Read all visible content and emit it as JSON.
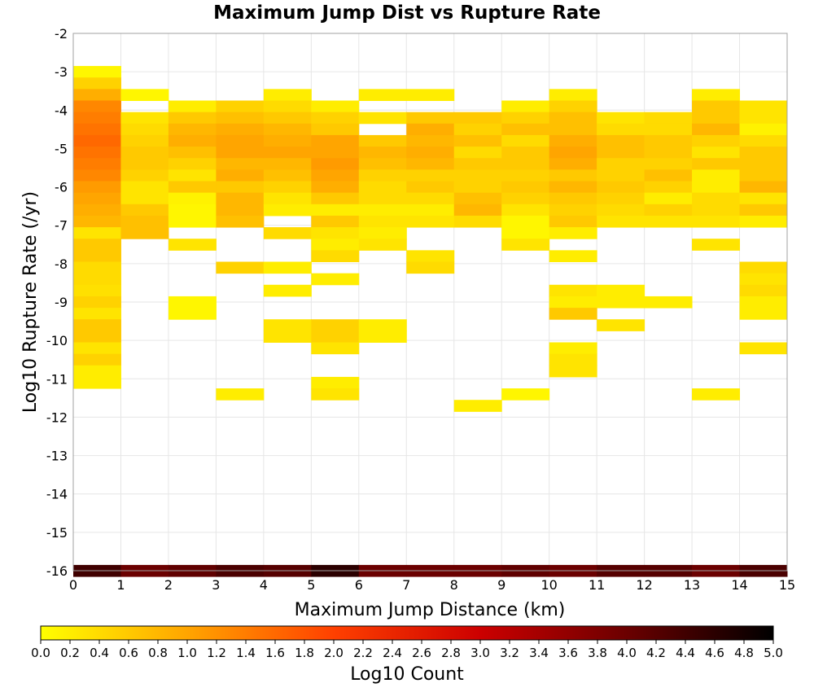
{
  "chart_data": {
    "type": "heatmap",
    "title": "Maximum Jump Dist vs Rupture Rate",
    "xlabel": "Maximum Jump Distance (km)",
    "ylabel": "Log10 Rupture Rate (/yr)",
    "xlim": [
      0,
      15
    ],
    "ylim": [
      -16,
      -2
    ],
    "x_ticks": [
      "0",
      "1",
      "2",
      "3",
      "4",
      "5",
      "6",
      "7",
      "8",
      "9",
      "10",
      "11",
      "12",
      "13",
      "14",
      "15"
    ],
    "y_ticks": [
      "-2",
      "-3",
      "-4",
      "-5",
      "-6",
      "-7",
      "-8",
      "-9",
      "-10",
      "-11",
      "-12",
      "-13",
      "-14",
      "-15",
      "-16"
    ],
    "bin_width_x": 1,
    "bin_height_y": 0.3,
    "colorbar": {
      "label": "Log10 Count",
      "range": [
        0,
        5
      ],
      "ticks": [
        "0.0",
        "0.2",
        "0.4",
        "0.6",
        "0.8",
        "1.0",
        "1.2",
        "1.4",
        "1.6",
        "1.8",
        "2.0",
        "2.2",
        "2.4",
        "2.6",
        "2.8",
        "3.0",
        "3.2",
        "3.4",
        "3.6",
        "3.8",
        "4.0",
        "4.2",
        "4.4",
        "4.6",
        "4.8",
        "5.0"
      ],
      "colors": [
        "#ffff00",
        "#ffa500",
        "#ff4000",
        "#cc0000",
        "#6b0000",
        "#000000"
      ]
    },
    "grid": true,
    "columns": [
      {
        "x": 0,
        "cells": [
          [
            -3.0,
            0.1
          ],
          [
            -3.3,
            0.5
          ],
          [
            -3.6,
            0.9
          ],
          [
            -3.9,
            1.3
          ],
          [
            -4.2,
            1.4
          ],
          [
            -4.5,
            1.5
          ],
          [
            -4.8,
            1.6
          ],
          [
            -5.1,
            1.5
          ],
          [
            -5.4,
            1.4
          ],
          [
            -5.7,
            1.3
          ],
          [
            -6.0,
            1.1
          ],
          [
            -6.3,
            1.0
          ],
          [
            -6.6,
            0.9
          ],
          [
            -6.9,
            0.8
          ],
          [
            -7.2,
            0.3
          ],
          [
            -7.5,
            0.6
          ],
          [
            -7.8,
            0.6
          ],
          [
            -8.1,
            0.4
          ],
          [
            -8.4,
            0.4
          ],
          [
            -8.7,
            0.35
          ],
          [
            -9.0,
            0.5
          ],
          [
            -9.3,
            0.3
          ],
          [
            -9.6,
            0.6
          ],
          [
            -9.9,
            0.6
          ],
          [
            -10.2,
            0.3
          ],
          [
            -10.5,
            0.5
          ],
          [
            -10.8,
            0.2
          ],
          [
            -11.1,
            0.2
          ],
          [
            -16.0,
            4.4
          ]
        ]
      },
      {
        "x": 1,
        "cells": [
          [
            -3.6,
            0.1
          ],
          [
            -4.2,
            0.3
          ],
          [
            -4.5,
            0.4
          ],
          [
            -4.8,
            0.5
          ],
          [
            -5.1,
            0.6
          ],
          [
            -5.4,
            0.6
          ],
          [
            -5.7,
            0.5
          ],
          [
            -6.0,
            0.3
          ],
          [
            -6.3,
            0.3
          ],
          [
            -6.6,
            0.6
          ],
          [
            -6.9,
            0.7
          ],
          [
            -7.2,
            0.7
          ],
          [
            -16.0,
            4.0
          ]
        ]
      },
      {
        "x": 2,
        "cells": [
          [
            -3.9,
            0.2
          ],
          [
            -4.2,
            0.6
          ],
          [
            -4.5,
            0.8
          ],
          [
            -4.8,
            0.9
          ],
          [
            -5.1,
            0.7
          ],
          [
            -5.4,
            0.5
          ],
          [
            -5.7,
            0.3
          ],
          [
            -6.0,
            0.6
          ],
          [
            -6.3,
            0.15
          ],
          [
            -6.6,
            0.1
          ],
          [
            -6.9,
            0.1
          ],
          [
            -7.5,
            0.3
          ],
          [
            -9.0,
            0.1
          ],
          [
            -9.3,
            0.1
          ],
          [
            -16.0,
            4.1
          ]
        ]
      },
      {
        "x": 3,
        "cells": [
          [
            -3.9,
            0.5
          ],
          [
            -4.2,
            0.7
          ],
          [
            -4.5,
            0.9
          ],
          [
            -4.8,
            1.0
          ],
          [
            -5.1,
            1.0
          ],
          [
            -5.4,
            0.8
          ],
          [
            -5.7,
            0.9
          ],
          [
            -6.0,
            0.6
          ],
          [
            -6.3,
            0.8
          ],
          [
            -6.6,
            0.8
          ],
          [
            -6.9,
            0.7
          ],
          [
            -8.1,
            0.5
          ],
          [
            -11.4,
            0.2
          ],
          [
            -16.0,
            4.3
          ]
        ]
      },
      {
        "x": 4,
        "cells": [
          [
            -3.6,
            0.2
          ],
          [
            -3.9,
            0.4
          ],
          [
            -4.2,
            0.6
          ],
          [
            -4.5,
            0.8
          ],
          [
            -4.8,
            0.9
          ],
          [
            -5.1,
            1.0
          ],
          [
            -5.4,
            0.8
          ],
          [
            -5.7,
            0.7
          ],
          [
            -6.0,
            0.5
          ],
          [
            -6.3,
            0.3
          ],
          [
            -6.6,
            0.2
          ],
          [
            -7.2,
            0.4
          ],
          [
            -8.1,
            0.2
          ],
          [
            -8.7,
            0.2
          ],
          [
            -9.6,
            0.3
          ],
          [
            -9.9,
            0.3
          ],
          [
            -16.0,
            4.2
          ]
        ]
      },
      {
        "x": 5,
        "cells": [
          [
            -3.9,
            0.2
          ],
          [
            -4.2,
            0.5
          ],
          [
            -4.5,
            0.6
          ],
          [
            -4.8,
            1.0
          ],
          [
            -5.1,
            1.0
          ],
          [
            -5.4,
            1.1
          ],
          [
            -5.7,
            1.0
          ],
          [
            -6.0,
            0.9
          ],
          [
            -6.3,
            0.6
          ],
          [
            -6.6,
            0.2
          ],
          [
            -6.9,
            0.6
          ],
          [
            -7.2,
            0.3
          ],
          [
            -7.5,
            0.2
          ],
          [
            -7.8,
            0.4
          ],
          [
            -8.4,
            0.2
          ],
          [
            -9.6,
            0.5
          ],
          [
            -9.9,
            0.5
          ],
          [
            -10.2,
            0.3
          ],
          [
            -11.1,
            0.2
          ],
          [
            -11.4,
            0.3
          ],
          [
            -16.0,
            4.6
          ]
        ]
      },
      {
        "x": 6,
        "cells": [
          [
            -3.6,
            0.2
          ],
          [
            -4.2,
            0.3
          ],
          [
            -4.8,
            0.6
          ],
          [
            -5.1,
            0.8
          ],
          [
            -5.4,
            0.7
          ],
          [
            -5.7,
            0.5
          ],
          [
            -6.0,
            0.4
          ],
          [
            -6.3,
            0.4
          ],
          [
            -6.6,
            0.2
          ],
          [
            -6.9,
            0.3
          ],
          [
            -7.2,
            0.2
          ],
          [
            -7.5,
            0.3
          ],
          [
            -9.6,
            0.2
          ],
          [
            -9.9,
            0.2
          ],
          [
            -16.0,
            4.0
          ]
        ]
      },
      {
        "x": 7,
        "cells": [
          [
            -3.6,
            0.2
          ],
          [
            -4.2,
            0.6
          ],
          [
            -4.5,
            0.9
          ],
          [
            -4.8,
            0.8
          ],
          [
            -5.1,
            0.9
          ],
          [
            -5.4,
            0.8
          ],
          [
            -5.7,
            0.5
          ],
          [
            -6.0,
            0.6
          ],
          [
            -6.3,
            0.4
          ],
          [
            -6.6,
            0.2
          ],
          [
            -6.9,
            0.3
          ],
          [
            -7.8,
            0.3
          ],
          [
            -8.1,
            0.4
          ],
          [
            -16.0,
            4.0
          ]
        ]
      },
      {
        "x": 8,
        "cells": [
          [
            -4.2,
            0.6
          ],
          [
            -4.5,
            0.5
          ],
          [
            -4.8,
            0.7
          ],
          [
            -5.1,
            0.4
          ],
          [
            -5.4,
            0.6
          ],
          [
            -5.7,
            0.5
          ],
          [
            -6.0,
            0.5
          ],
          [
            -6.3,
            0.7
          ],
          [
            -6.6,
            0.8
          ],
          [
            -6.9,
            0.4
          ],
          [
            -11.7,
            0.2
          ],
          [
            -16.0,
            4.0
          ]
        ]
      },
      {
        "x": 9,
        "cells": [
          [
            -3.9,
            0.2
          ],
          [
            -4.2,
            0.5
          ],
          [
            -4.5,
            0.7
          ],
          [
            -4.8,
            0.4
          ],
          [
            -5.1,
            0.6
          ],
          [
            -5.4,
            0.6
          ],
          [
            -5.7,
            0.5
          ],
          [
            -6.0,
            0.6
          ],
          [
            -6.3,
            0.5
          ],
          [
            -6.6,
            0.3
          ],
          [
            -6.9,
            0.1
          ],
          [
            -7.2,
            0.1
          ],
          [
            -7.5,
            0.3
          ],
          [
            -11.4,
            0.1
          ],
          [
            -16.0,
            4.1
          ]
        ]
      },
      {
        "x": 10,
        "cells": [
          [
            -3.6,
            0.2
          ],
          [
            -3.9,
            0.5
          ],
          [
            -4.2,
            0.7
          ],
          [
            -4.5,
            0.7
          ],
          [
            -4.8,
            0.9
          ],
          [
            -5.1,
            1.0
          ],
          [
            -5.4,
            0.9
          ],
          [
            -5.7,
            0.6
          ],
          [
            -6.0,
            0.8
          ],
          [
            -6.3,
            0.6
          ],
          [
            -6.6,
            0.5
          ],
          [
            -6.9,
            0.6
          ],
          [
            -7.2,
            0.2
          ],
          [
            -7.8,
            0.2
          ],
          [
            -8.7,
            0.3
          ],
          [
            -9.0,
            0.2
          ],
          [
            -9.3,
            0.6
          ],
          [
            -10.2,
            0.2
          ],
          [
            -10.5,
            0.3
          ],
          [
            -10.8,
            0.3
          ],
          [
            -16.0,
            4.0
          ]
        ]
      },
      {
        "x": 11,
        "cells": [
          [
            -4.2,
            0.3
          ],
          [
            -4.5,
            0.4
          ],
          [
            -4.8,
            0.7
          ],
          [
            -5.1,
            0.7
          ],
          [
            -5.4,
            0.5
          ],
          [
            -5.7,
            0.5
          ],
          [
            -6.0,
            0.6
          ],
          [
            -6.3,
            0.5
          ],
          [
            -6.6,
            0.4
          ],
          [
            -6.9,
            0.3
          ],
          [
            -8.7,
            0.2
          ],
          [
            -9.0,
            0.2
          ],
          [
            -9.6,
            0.3
          ],
          [
            -16.0,
            4.2
          ]
        ]
      },
      {
        "x": 12,
        "cells": [
          [
            -4.2,
            0.4
          ],
          [
            -4.5,
            0.4
          ],
          [
            -4.8,
            0.6
          ],
          [
            -5.1,
            0.6
          ],
          [
            -5.4,
            0.5
          ],
          [
            -5.7,
            0.7
          ],
          [
            -6.0,
            0.5
          ],
          [
            -6.3,
            0.2
          ],
          [
            -6.6,
            0.5
          ],
          [
            -6.9,
            0.3
          ],
          [
            -9.0,
            0.2
          ],
          [
            -16.0,
            4.2
          ]
        ]
      },
      {
        "x": 13,
        "cells": [
          [
            -3.6,
            0.2
          ],
          [
            -3.9,
            0.6
          ],
          [
            -4.2,
            0.6
          ],
          [
            -4.5,
            0.8
          ],
          [
            -4.8,
            0.5
          ],
          [
            -5.1,
            0.3
          ],
          [
            -5.4,
            0.6
          ],
          [
            -5.7,
            0.2
          ],
          [
            -6.0,
            0.2
          ],
          [
            -6.3,
            0.4
          ],
          [
            -6.6,
            0.4
          ],
          [
            -6.9,
            0.3
          ],
          [
            -7.5,
            0.3
          ],
          [
            -11.4,
            0.2
          ],
          [
            -16.0,
            4.0
          ]
        ]
      },
      {
        "x": 14,
        "cells": [
          [
            -3.9,
            0.3
          ],
          [
            -4.2,
            0.3
          ],
          [
            -4.5,
            0.15
          ],
          [
            -4.8,
            0.4
          ],
          [
            -5.1,
            0.6
          ],
          [
            -5.4,
            0.6
          ],
          [
            -5.7,
            0.6
          ],
          [
            -6.0,
            0.8
          ],
          [
            -6.3,
            0.3
          ],
          [
            -6.6,
            0.6
          ],
          [
            -6.9,
            0.2
          ],
          [
            -8.1,
            0.4
          ],
          [
            -8.4,
            0.3
          ],
          [
            -8.7,
            0.4
          ],
          [
            -9.0,
            0.2
          ],
          [
            -9.3,
            0.2
          ],
          [
            -10.2,
            0.3
          ],
          [
            -16.0,
            4.3
          ]
        ]
      }
    ]
  }
}
